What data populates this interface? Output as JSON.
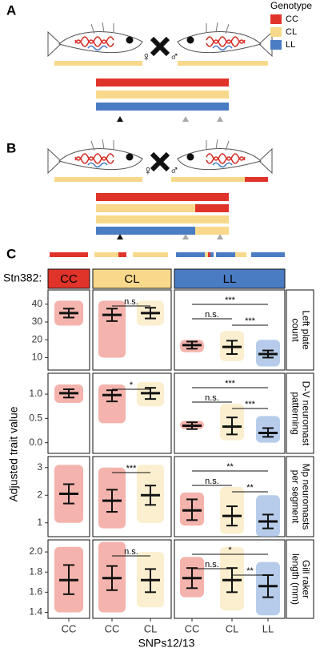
{
  "panels": [
    "A",
    "B",
    "C"
  ],
  "legend": {
    "title": "Genotype",
    "items": [
      {
        "label": "CC",
        "color": "#e0342b"
      },
      {
        "label": "CL",
        "color": "#f8d98b"
      },
      {
        "label": "LL",
        "color": "#4a7cc4"
      }
    ]
  },
  "panel_a": {
    "female": "♀",
    "male": "♂"
  },
  "panel_b": {
    "female": "♀",
    "male": "♂"
  },
  "strip_title": "Stn382:",
  "y_label": "Adjusted trait value",
  "x_label": "SNPs12/13",
  "facets": [
    {
      "label": "CC",
      "color": "#e0342b",
      "categories": [
        "CC"
      ]
    },
    {
      "label": "CL",
      "color": "#f8d98b",
      "categories": [
        "CC",
        "CL"
      ]
    },
    {
      "label": "LL",
      "color": "#4a7cc4",
      "categories": [
        "CC",
        "CL",
        "LL"
      ]
    }
  ],
  "chart_data": [
    {
      "type": "dotplot",
      "strip_lines": [
        "Left plate",
        "count"
      ],
      "ylim": [
        3,
        48
      ],
      "yticks": [
        10,
        20,
        30,
        40
      ],
      "facets": [
        {
          "groups": [
            {
              "mean": 35,
              "lower": 32.5,
              "upper": 37.5,
              "min": 28,
              "max": 42
            }
          ],
          "comparisons": []
        },
        {
          "groups": [
            {
              "mean": 34,
              "lower": 30.5,
              "upper": 37.5,
              "min": 10,
              "max": 42
            },
            {
              "mean": 35,
              "lower": 32,
              "upper": 38,
              "min": 28,
              "max": 42
            }
          ],
          "comparisons": [
            {
              "between": [
                "CC",
                "CL"
              ],
              "label": "n.s."
            }
          ]
        },
        {
          "groups": [
            {
              "mean": 17,
              "lower": 15,
              "upper": 19,
              "min": 13,
              "max": 20
            },
            {
              "mean": 16,
              "lower": 12,
              "upper": 19.5,
              "min": 8,
              "max": 25
            },
            {
              "mean": 12,
              "lower": 10,
              "upper": 14,
              "min": 5,
              "max": 20
            }
          ],
          "comparisons": [
            {
              "between": [
                "CC",
                "LL"
              ],
              "label": "***"
            },
            {
              "between": [
                "CC",
                "CL"
              ],
              "label": "n.s."
            },
            {
              "between": [
                "CL",
                "LL"
              ],
              "label": "***"
            }
          ]
        }
      ]
    },
    {
      "type": "dotplot",
      "strip_lines": [
        "D-V neuromast",
        "patterning"
      ],
      "ylim": [
        -0.22,
        1.43
      ],
      "yticks": [
        {
          "value": 0,
          "label": "0.0"
        },
        0.5,
        {
          "value": 1,
          "label": "1.0"
        }
      ],
      "facets": [
        {
          "groups": [
            {
              "mean": 1.02,
              "lower": 0.93,
              "upper": 1.1,
              "min": 0.82,
              "max": 1.2
            }
          ],
          "comparisons": []
        },
        {
          "groups": [
            {
              "mean": 0.98,
              "lower": 0.85,
              "upper": 1.08,
              "min": 0.4,
              "max": 1.2
            },
            {
              "mean": 1.02,
              "lower": 0.9,
              "upper": 1.13,
              "min": 0.75,
              "max": 1.25
            }
          ],
          "comparisons": [
            {
              "between": [
                "CC",
                "CL"
              ],
              "label": "*"
            }
          ]
        },
        {
          "groups": [
            {
              "mean": 0.35,
              "lower": 0.28,
              "upper": 0.42,
              "min": 0.28,
              "max": 0.45
            },
            {
              "mean": 0.33,
              "lower": 0.17,
              "upper": 0.52,
              "min": 0.05,
              "max": 0.8
            },
            {
              "mean": 0.2,
              "lower": 0.12,
              "upper": 0.3,
              "min": 0,
              "max": 0.55
            }
          ],
          "comparisons": [
            {
              "between": [
                "CC",
                "LL"
              ],
              "label": "***"
            },
            {
              "between": [
                "CC",
                "CL"
              ],
              "label": "n.s."
            },
            {
              "between": [
                "CL",
                "LL"
              ],
              "label": "***"
            }
          ]
        }
      ]
    },
    {
      "type": "dotplot",
      "strip_lines": [
        "Mp neuromasts",
        "per segment"
      ],
      "ylim": [
        0.5,
        3.4
      ],
      "yticks": [
        1,
        2,
        3
      ],
      "facets": [
        {
          "groups": [
            {
              "mean": 2.05,
              "lower": 1.7,
              "upper": 2.4,
              "min": 1,
              "max": 3.1
            }
          ],
          "comparisons": []
        },
        {
          "groups": [
            {
              "mean": 1.8,
              "lower": 1.4,
              "upper": 2.2,
              "min": 0.8,
              "max": 3
            },
            {
              "mean": 2,
              "lower": 1.65,
              "upper": 2.35,
              "min": 1,
              "max": 3.1
            }
          ],
          "comparisons": [
            {
              "between": [
                "CC",
                "CL"
              ],
              "label": "***"
            }
          ]
        },
        {
          "groups": [
            {
              "mean": 1.45,
              "lower": 1.1,
              "upper": 1.85,
              "min": 0.9,
              "max": 2.1
            },
            {
              "mean": 1.25,
              "lower": 0.9,
              "upper": 1.6,
              "min": 0.6,
              "max": 2.3
            },
            {
              "mean": 1.05,
              "lower": 0.8,
              "upper": 1.3,
              "min": 0.5,
              "max": 2
            }
          ],
          "comparisons": [
            {
              "between": [
                "CC",
                "LL"
              ],
              "label": "**"
            },
            {
              "between": [
                "CC",
                "CL"
              ],
              "label": "n.s."
            },
            {
              "between": [
                "CL",
                "LL"
              ],
              "label": "**"
            }
          ]
        }
      ]
    },
    {
      "type": "dotplot",
      "strip_lines": [
        "Gill raker",
        "length (mm)"
      ],
      "ylim": [
        1.34,
        2.12
      ],
      "yticks": [
        1.4,
        1.6,
        1.8,
        {
          "value": 2,
          "label": "2.0"
        }
      ],
      "facets": [
        {
          "groups": [
            {
              "mean": 1.72,
              "lower": 1.58,
              "upper": 1.87,
              "min": 1.4,
              "max": 2.05
            }
          ],
          "comparisons": []
        },
        {
          "groups": [
            {
              "mean": 1.74,
              "lower": 1.62,
              "upper": 1.86,
              "min": 1.4,
              "max": 2.1
            },
            {
              "mean": 1.72,
              "lower": 1.6,
              "upper": 1.83,
              "min": 1.45,
              "max": 2
            }
          ],
          "comparisons": [
            {
              "between": [
                "CC",
                "CL"
              ],
              "label": "n.s."
            }
          ]
        },
        {
          "groups": [
            {
              "mean": 1.74,
              "lower": 1.64,
              "upper": 1.84,
              "min": 1.55,
              "max": 1.95
            },
            {
              "mean": 1.72,
              "lower": 1.6,
              "upper": 1.84,
              "min": 1.42,
              "max": 2.05
            },
            {
              "mean": 1.66,
              "lower": 1.55,
              "upper": 1.77,
              "min": 1.37,
              "max": 1.9
            }
          ],
          "comparisons": [
            {
              "between": [
                "CC",
                "LL"
              ],
              "label": "*"
            },
            {
              "between": [
                "CC",
                "CL"
              ],
              "label": "n.s."
            },
            {
              "between": [
                "CL",
                "LL"
              ],
              "label": "**"
            }
          ]
        }
      ]
    }
  ]
}
